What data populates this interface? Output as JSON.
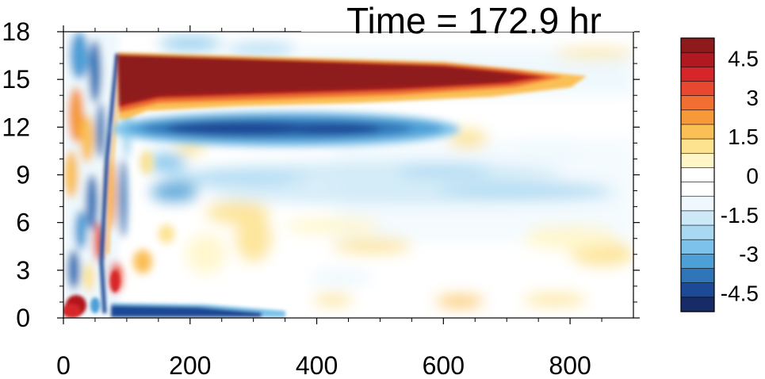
{
  "chart_data": {
    "type": "heatmap",
    "title": "Time = 172.9 hr",
    "xlabel": "",
    "ylabel": "",
    "xlim": [
      0,
      900
    ],
    "ylim": [
      0,
      18
    ],
    "x_ticks": [
      "0",
      "200",
      "400",
      "600",
      "800"
    ],
    "y_ticks": [
      "0",
      "3",
      "6",
      "9",
      "12",
      "15",
      "18"
    ],
    "colorbar": {
      "range": [
        -5.25,
        5.25
      ],
      "step": 0.75,
      "labels": [
        "4.5",
        "3",
        "1.5",
        "0",
        "-1.5",
        "-3",
        "-4.5"
      ],
      "colors": [
        "#8e1a1c",
        "#b1181f",
        "#d7262a",
        "#e7482f",
        "#f16f32",
        "#f69939",
        "#fabf55",
        "#fde290",
        "#fff6c8",
        "#ffffff",
        "#ffffff",
        "#eef8fd",
        "#cde9f7",
        "#a8d8f2",
        "#7dc2ea",
        "#4d9fd6",
        "#2f75b8",
        "#1d4a96",
        "#172b66"
      ]
    },
    "features": [
      {
        "name": "strong positive band",
        "x": [
          85,
          720
        ],
        "y_center": 15.0,
        "value": 5.25
      },
      {
        "name": "negative band",
        "x": [
          140,
          560
        ],
        "y_center": 11.8,
        "value": -4.2
      },
      {
        "name": "bottom negative band",
        "x": [
          75,
          360
        ],
        "y_center": 0.3,
        "value": -4.5
      },
      {
        "name": "weak negative band",
        "x": [
          180,
          750
        ],
        "y_center": 8.5,
        "value": -1.0
      },
      {
        "name": "weak negative band",
        "x": [
          200,
          800
        ],
        "y_center": 7.0,
        "value": -0.9
      },
      {
        "name": "bottom-left positive spot",
        "x": [
          0,
          40
        ],
        "y_center": 0.6,
        "value": 4.8
      },
      {
        "name": "oscillating front",
        "x": [
          0,
          90
        ],
        "y_center": 9.0,
        "value": 3.5
      }
    ]
  }
}
